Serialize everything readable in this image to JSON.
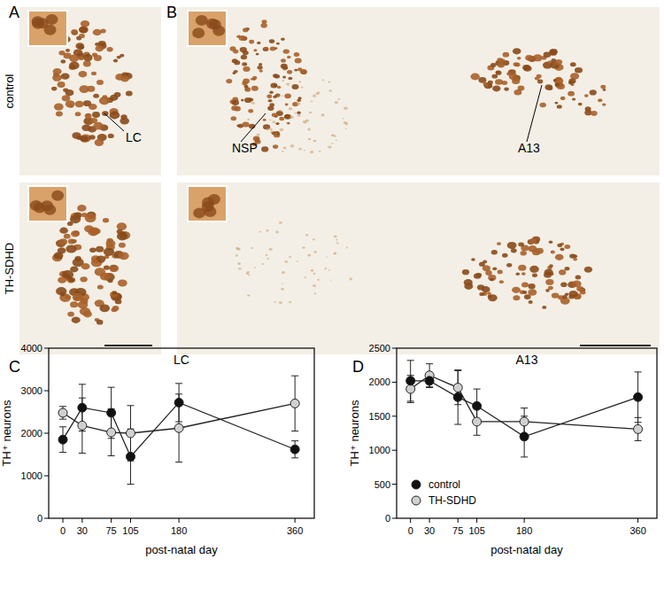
{
  "figure": {
    "panel_labels": [
      "A",
      "B",
      "C",
      "D"
    ],
    "row_labels": [
      "control",
      "TH-SDHD"
    ],
    "annotations": [
      "LC",
      "NSP",
      "A13"
    ]
  },
  "chart_data": [
    {
      "type": "line",
      "title": "LC",
      "x_label": "post-natal day",
      "y_label": "TH⁺ neurons",
      "x": [
        0,
        30,
        75,
        105,
        180,
        360
      ],
      "xlim": [
        -22,
        390
      ],
      "xticks": [
        0,
        30,
        75,
        105,
        180,
        360
      ],
      "ylim": [
        0,
        4000
      ],
      "yticks": [
        0,
        1000,
        2000,
        3000,
        4000
      ],
      "series": [
        {
          "color": "#d0d0d0",
          "marker": "circle",
          "values": [
            2480,
            2180,
            2020,
            2000,
            2120,
            2700
          ],
          "errors": [
            150,
            650,
            550,
            650,
            800,
            650
          ]
        },
        {
          "color": "#111111",
          "marker": "circle",
          "values": [
            1850,
            2600,
            2480,
            1450,
            2720,
            1620
          ],
          "errors": [
            300,
            550,
            600,
            650,
            450,
            200
          ]
        }
      ]
    },
    {
      "type": "line",
      "title": "A13",
      "x_label": "post-natal day",
      "y_label": "TH⁺ neurons",
      "x": [
        0,
        30,
        75,
        105,
        180,
        360
      ],
      "xlim": [
        -22,
        390
      ],
      "xticks": [
        0,
        30,
        75,
        105,
        180,
        360
      ],
      "ylim": [
        0,
        2500
      ],
      "yticks": [
        0,
        500,
        1000,
        1500,
        2000,
        2500
      ],
      "legend": "lower left",
      "series": [
        {
          "name": "TH-SDHD",
          "color": "#d0d0d0",
          "marker": "circle",
          "values": [
            1900,
            2100,
            1920,
            1420,
            1420,
            1310
          ],
          "errors": [
            200,
            170,
            250,
            200,
            200,
            170
          ]
        },
        {
          "name": "control",
          "color": "#111111",
          "marker": "circle",
          "values": [
            2020,
            2020,
            1780,
            1650,
            1200,
            1780
          ],
          "errors": [
            300,
            100,
            400,
            250,
            300,
            370
          ]
        }
      ]
    }
  ]
}
